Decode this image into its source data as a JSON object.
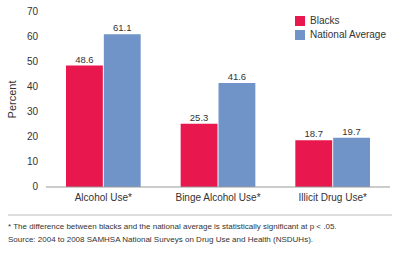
{
  "chart_data": {
    "type": "bar",
    "categories": [
      "Alcohol Use*",
      "Binge Alcohol Use*",
      "Illicit Drug Use*"
    ],
    "series": [
      {
        "name": "Blacks",
        "color": "#e8174d",
        "values": [
          48.6,
          25.3,
          18.7
        ]
      },
      {
        "name": "National Average",
        "color": "#7094c8",
        "values": [
          61.1,
          41.6,
          19.7
        ]
      }
    ],
    "ylabel": "Percent",
    "ylim": [
      0,
      70
    ],
    "yticks": [
      0,
      10,
      20,
      30,
      40,
      50,
      60,
      70
    ],
    "grid": false,
    "legend": "upper right",
    "data_labels": true,
    "annotations": [
      "* The difference between blacks and the national average is statistically significant at  p < .05.",
      "Source: 2004 to 2008 SAMHSA National Surveys on Drug Use and Health (NSDUHs)."
    ]
  }
}
